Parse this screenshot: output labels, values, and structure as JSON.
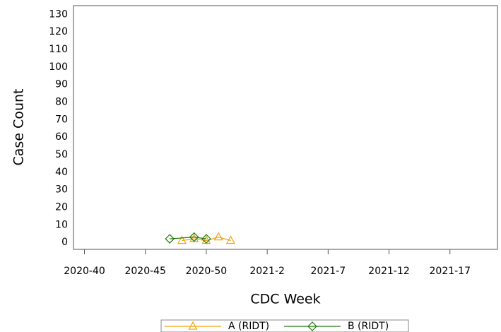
{
  "chart_data": {
    "type": "line",
    "x_label": "CDC Week",
    "y_label": "Case Count",
    "xlim": [
      -0.9,
      33.9
    ],
    "xticks": [
      {
        "value": 0,
        "label": "2020-40"
      },
      {
        "value": 5,
        "label": "2020-45"
      },
      {
        "value": 10,
        "label": "2020-50"
      },
      {
        "value": 15,
        "label": "2021-2"
      },
      {
        "value": 20,
        "label": "2021-7"
      },
      {
        "value": 25,
        "label": "2021-12"
      },
      {
        "value": 30,
        "label": "2021-17"
      }
    ],
    "ylim": [
      -4,
      135
    ],
    "yticks": [
      0,
      10,
      20,
      30,
      40,
      50,
      60,
      70,
      80,
      90,
      100,
      110,
      120,
      130
    ],
    "series": [
      {
        "name": "A (RIDT)",
        "color": "#f0a30a",
        "marker": "triangle",
        "x": [
          8,
          9,
          10,
          11,
          12
        ],
        "values": [
          1,
          2,
          1,
          3,
          1
        ]
      },
      {
        "name": "B (RIDT)",
        "color": "#1f7a0a",
        "marker": "diamond",
        "x": [
          7,
          9,
          10
        ],
        "values": [
          2,
          3,
          2
        ]
      }
    ],
    "legend": "bottom"
  }
}
